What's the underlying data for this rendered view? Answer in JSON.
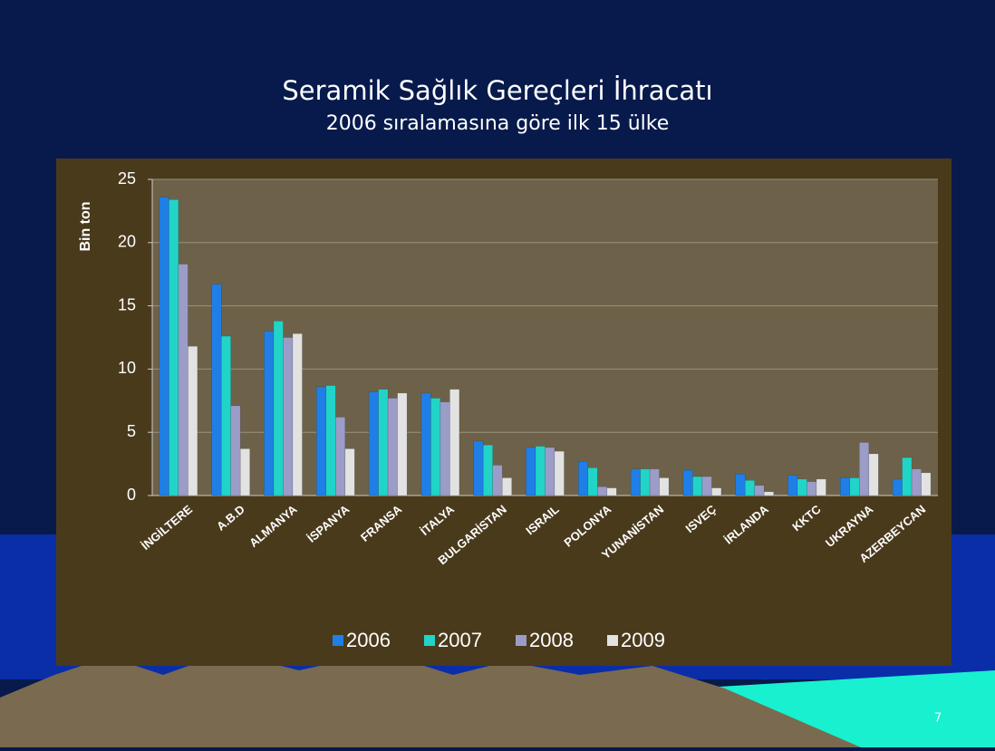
{
  "chart_data": {
    "type": "bar",
    "title": "Seramik Sağlık Gereçleri İhracatı",
    "subtitle": "2006 sıralamasına göre ilk 15 ülke",
    "ylabel": "Bin ton",
    "categories": [
      "İNGİLTERE",
      "A.B.D",
      "ALMANYA",
      "İSPANYA",
      "FRANSA",
      "İTALYA",
      "BULGARİSTAN",
      "ISRAIL",
      "POLONYA",
      "YUNANİSTAN",
      "ISVEÇ",
      "İRLANDA",
      "KKTC",
      "UKRAYNA",
      "AZERBEYCAN"
    ],
    "series": [
      {
        "name": "2006",
        "color": "#1f7fe6",
        "values": [
          23.6,
          16.7,
          13.0,
          8.6,
          8.2,
          8.1,
          4.3,
          3.8,
          2.7,
          2.1,
          2.0,
          1.7,
          1.6,
          1.4,
          1.3
        ]
      },
      {
        "name": "2007",
        "color": "#22d4c8",
        "values": [
          23.4,
          12.6,
          13.8,
          8.7,
          8.4,
          7.7,
          4.0,
          3.9,
          2.2,
          2.1,
          1.5,
          1.2,
          1.3,
          1.4,
          3.0
        ]
      },
      {
        "name": "2008",
        "color": "#9c9cc8",
        "values": [
          18.3,
          7.1,
          12.5,
          6.2,
          7.7,
          7.4,
          2.4,
          3.8,
          0.7,
          2.1,
          1.5,
          0.8,
          1.1,
          4.2,
          2.1
        ]
      },
      {
        "name": "2009",
        "color": "#e2e2e2",
        "values": [
          11.8,
          3.7,
          12.8,
          3.7,
          8.1,
          8.4,
          1.4,
          3.5,
          0.6,
          1.4,
          0.6,
          0.3,
          1.3,
          3.3,
          1.8
        ]
      }
    ],
    "ylim": [
      0,
      25
    ],
    "yticks": [
      0,
      5,
      10,
      15,
      20,
      25
    ],
    "grid": true
  },
  "slide_number": "7"
}
